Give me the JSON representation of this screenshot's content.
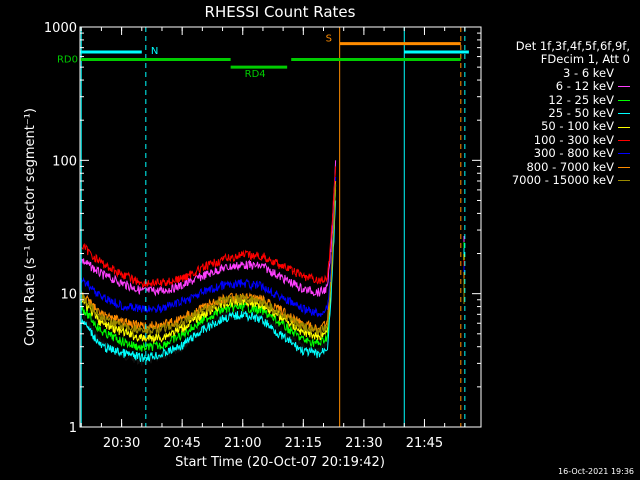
{
  "chart_data": {
    "type": "line",
    "title": "RHESSI Count Rates",
    "xlabel": "Start Time (20-Oct-07 20:19:42)",
    "ylabel": "Count Rate (s⁻¹ detector segment⁻¹)",
    "y_scale": "log",
    "ylim": [
      1,
      1000
    ],
    "xlim": [
      "20:19:42",
      "21:59:00"
    ],
    "x_ticks": [
      "20:30",
      "20:45",
      "21:00",
      "21:15",
      "21:30",
      "21:45"
    ],
    "y_ticks": [
      "1",
      "10",
      "100",
      "1000"
    ],
    "grid": false,
    "legend_position": "right",
    "legend_header": [
      "Det 1f,3f,4f,5f,6f,9f,",
      "FDecim 1, Att 0"
    ],
    "series": [
      {
        "name": "3 - 6 keV",
        "color": "#000000",
        "x": [
          "20:20",
          "20:25",
          "20:30",
          "20:35",
          "20:40",
          "20:45",
          "20:50",
          "20:55",
          "21:00",
          "21:05",
          "21:10",
          "21:15",
          "21:19",
          "21:21",
          "21:22",
          "21:23"
        ],
        "values": [
          7.0,
          4.3,
          3.5,
          3.1,
          3.3,
          4.0,
          5.5,
          6.8,
          7.2,
          6.5,
          5.0,
          3.9,
          3.7,
          4.2,
          12,
          55
        ]
      },
      {
        "name": "6 - 12 keV",
        "color": "#ff40ff",
        "x": [
          "20:20",
          "20:25",
          "20:30",
          "20:35",
          "20:40",
          "20:45",
          "20:50",
          "20:55",
          "21:00",
          "21:05",
          "21:10",
          "21:15",
          "21:19",
          "21:21",
          "21:22",
          "21:23"
        ],
        "values": [
          18,
          14,
          12,
          10.5,
          10.5,
          11.5,
          13.5,
          15.5,
          16.5,
          16,
          13,
          10.8,
          10.2,
          11,
          25,
          100
        ]
      },
      {
        "name": "12 - 25 keV",
        "color": "#00ff00",
        "x": [
          "20:20",
          "20:25",
          "20:30",
          "20:35",
          "20:40",
          "20:45",
          "20:50",
          "20:55",
          "21:00",
          "21:05",
          "21:10",
          "21:15",
          "21:19",
          "21:21",
          "21:22",
          "21:23"
        ],
        "values": [
          8.0,
          5.2,
          4.4,
          3.9,
          4.1,
          4.9,
          6.3,
          7.6,
          8.0,
          7.4,
          5.8,
          4.5,
          4.2,
          4.8,
          13,
          60
        ]
      },
      {
        "name": "25 - 50 keV",
        "color": "#00ffff",
        "x": [
          "20:20",
          "20:25",
          "20:30",
          "20:35",
          "20:40",
          "20:45",
          "20:50",
          "20:55",
          "21:00",
          "21:05",
          "21:10",
          "21:15",
          "21:19",
          "21:21",
          "21:22",
          "21:23"
        ],
        "values": [
          6.5,
          4.0,
          3.6,
          3.3,
          3.5,
          4.1,
          5.3,
          6.5,
          7.0,
          6.3,
          4.7,
          3.7,
          3.5,
          4.0,
          11,
          50
        ]
      },
      {
        "name": "50 - 100 keV",
        "color": "#ffff00",
        "x": [
          "20:20",
          "20:25",
          "20:30",
          "20:35",
          "20:40",
          "20:45",
          "20:50",
          "20:55",
          "21:00",
          "21:05",
          "21:10",
          "21:15",
          "21:19",
          "21:21",
          "21:22",
          "21:23"
        ],
        "values": [
          9.0,
          6.0,
          5.2,
          4.6,
          4.7,
          5.5,
          7.0,
          8.3,
          8.8,
          8.2,
          6.5,
          5.1,
          4.8,
          5.3,
          14,
          65
        ]
      },
      {
        "name": "100 - 300 keV",
        "color": "#ff0000",
        "x": [
          "20:20",
          "20:25",
          "20:30",
          "20:35",
          "20:40",
          "20:45",
          "20:50",
          "20:55",
          "21:00",
          "21:05",
          "21:10",
          "21:15",
          "21:19",
          "21:21",
          "21:22",
          "21:23"
        ],
        "values": [
          23,
          17,
          14,
          12,
          12,
          13,
          15.5,
          18,
          19.5,
          19,
          16,
          13.5,
          12.5,
          13,
          30,
          90
        ]
      },
      {
        "name": "300 - 800 keV",
        "color": "#0000ff",
        "x": [
          "20:20",
          "20:25",
          "20:30",
          "20:35",
          "20:40",
          "20:45",
          "20:50",
          "20:55",
          "21:00",
          "21:05",
          "21:10",
          "21:15",
          "21:19",
          "21:21",
          "21:22",
          "21:23"
        ],
        "values": [
          13,
          9.5,
          8.2,
          7.6,
          7.8,
          8.7,
          10.2,
          11.5,
          12,
          11.3,
          9.3,
          7.6,
          7.1,
          7.6,
          18,
          75
        ]
      },
      {
        "name": "800 - 7000 keV",
        "color": "#ff8c00",
        "x": [
          "20:20",
          "20:25",
          "20:30",
          "20:35",
          "20:40",
          "20:45",
          "20:50",
          "20:55",
          "21:00",
          "21:05",
          "21:10",
          "21:15",
          "21:19",
          "21:21",
          "21:22",
          "21:23"
        ],
        "values": [
          10,
          7.0,
          6.2,
          5.7,
          5.8,
          6.5,
          7.9,
          9.1,
          9.6,
          9.0,
          7.3,
          5.9,
          5.5,
          6.0,
          15,
          70
        ]
      },
      {
        "name": "7000 - 15000 keV",
        "color": "#9a8a00",
        "x": [
          "20:20",
          "20:25",
          "20:30",
          "20:35",
          "20:40",
          "20:45",
          "20:50",
          "20:55",
          "21:00",
          "21:05",
          "21:10",
          "21:15",
          "21:19",
          "21:21",
          "21:22",
          "21:23"
        ],
        "values": [
          9.5,
          6.6,
          5.8,
          5.3,
          5.4,
          6.1,
          7.5,
          8.7,
          9.2,
          8.6,
          6.9,
          5.6,
          5.2,
          5.7,
          14,
          66
        ]
      }
    ],
    "annotations": [
      {
        "label": "N",
        "color": "#00ffff",
        "text_x": "20:36",
        "bar_from": "20:19:42",
        "bar_to": "20:35",
        "bar_level": 650
      },
      {
        "label": "S",
        "color": "#ff8c00",
        "text_x": "21:22",
        "bar_from": "21:24",
        "bar_to": "21:54",
        "bar_level": 750
      },
      {
        "label": "",
        "color": "#00ffff",
        "bar_from": "21:40",
        "bar_to": "21:56",
        "bar_level": 650
      },
      {
        "label": "RD0",
        "color": "#00cc00",
        "bar_from": "20:19:42",
        "bar_to": "20:57",
        "bar_level": 570
      },
      {
        "label": "RD4",
        "color": "#00cc00",
        "bar_from": "20:57",
        "bar_to": "21:11",
        "bar_level": 500
      },
      {
        "label": "",
        "color": "#00cc00",
        "bar_from": "21:12",
        "bar_to": "21:54",
        "bar_level": 570
      }
    ],
    "vertical_lines": [
      {
        "x": "20:20",
        "color": "#00ffff",
        "style": "solid"
      },
      {
        "x": "20:36",
        "color": "#00ffff",
        "style": "dashed"
      },
      {
        "x": "21:24",
        "color": "#ff8c00",
        "style": "solid"
      },
      {
        "x": "21:40",
        "color": "#00ffff",
        "style": "solid"
      },
      {
        "x": "21:54",
        "color": "#ff8c00",
        "style": "dashed"
      },
      {
        "x": "21:55",
        "color": "#00ffff",
        "style": "dashed"
      }
    ]
  },
  "timestamp": "16-Oct-2021 19:36"
}
